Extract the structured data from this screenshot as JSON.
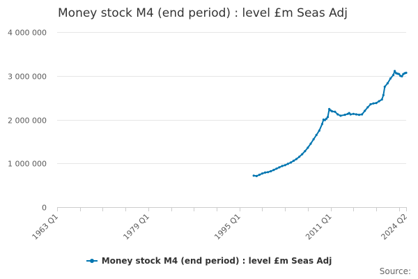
{
  "chart_data": {
    "type": "line",
    "title": "Money stock M4 (end period) : level £m Seas Adj",
    "xlabel": "",
    "ylabel": "",
    "x_range": [
      1963.0,
      2024.25
    ],
    "ylim": [
      0,
      4000000
    ],
    "y_ticks": [
      0,
      1000000,
      2000000,
      3000000,
      4000000
    ],
    "y_tick_labels": [
      "0",
      "1 000 000",
      "2 000 000",
      "3 000 000",
      "4 000 000"
    ],
    "x_ticks": [
      1963.0,
      1979.0,
      1995.0,
      2011.0,
      2024.25
    ],
    "x_tick_labels": [
      "1963 Q1",
      "1979 Q1",
      "1995 Q1",
      "2011 Q1",
      "2024 Q2"
    ],
    "grid": "horizontal",
    "legend_position": "bottom",
    "series": [
      {
        "name": "Money stock M4 (end period) : level £m Seas Adj",
        "color": "#0075b0",
        "points": [
          [
            1997.5,
            720000
          ],
          [
            1998.0,
            710000
          ],
          [
            1998.5,
            740000
          ],
          [
            1999.0,
            770000
          ],
          [
            1999.5,
            790000
          ],
          [
            2000.0,
            800000
          ],
          [
            2000.5,
            820000
          ],
          [
            2001.0,
            850000
          ],
          [
            2001.5,
            880000
          ],
          [
            2002.0,
            910000
          ],
          [
            2002.5,
            940000
          ],
          [
            2003.0,
            960000
          ],
          [
            2003.5,
            990000
          ],
          [
            2004.0,
            1020000
          ],
          [
            2004.5,
            1060000
          ],
          [
            2005.0,
            1100000
          ],
          [
            2005.5,
            1150000
          ],
          [
            2006.0,
            1210000
          ],
          [
            2006.5,
            1280000
          ],
          [
            2007.0,
            1360000
          ],
          [
            2007.5,
            1450000
          ],
          [
            2008.0,
            1550000
          ],
          [
            2008.5,
            1650000
          ],
          [
            2009.0,
            1750000
          ],
          [
            2009.5,
            1900000
          ],
          [
            2009.75,
            2000000
          ],
          [
            2010.0,
            1990000
          ],
          [
            2010.25,
            2020000
          ],
          [
            2010.5,
            2060000
          ],
          [
            2010.75,
            2240000
          ],
          [
            2011.0,
            2210000
          ],
          [
            2011.25,
            2190000
          ],
          [
            2011.75,
            2180000
          ],
          [
            2012.25,
            2120000
          ],
          [
            2012.75,
            2090000
          ],
          [
            2013.5,
            2110000
          ],
          [
            2014.0,
            2130000
          ],
          [
            2014.25,
            2150000
          ],
          [
            2014.5,
            2120000
          ],
          [
            2015.0,
            2130000
          ],
          [
            2015.5,
            2120000
          ],
          [
            2016.0,
            2110000
          ],
          [
            2016.5,
            2120000
          ],
          [
            2017.0,
            2200000
          ],
          [
            2017.5,
            2280000
          ],
          [
            2018.0,
            2350000
          ],
          [
            2018.5,
            2370000
          ],
          [
            2019.0,
            2380000
          ],
          [
            2019.5,
            2420000
          ],
          [
            2020.0,
            2460000
          ],
          [
            2020.25,
            2560000
          ],
          [
            2020.5,
            2750000
          ],
          [
            2021.0,
            2830000
          ],
          [
            2021.5,
            2940000
          ],
          [
            2022.0,
            3020000
          ],
          [
            2022.25,
            3110000
          ],
          [
            2022.5,
            3060000
          ],
          [
            2022.75,
            3050000
          ],
          [
            2023.0,
            3040000
          ],
          [
            2023.25,
            3000000
          ],
          [
            2023.5,
            2990000
          ],
          [
            2023.75,
            3040000
          ],
          [
            2024.0,
            3060000
          ],
          [
            2024.25,
            3070000
          ]
        ]
      }
    ]
  },
  "legend": {
    "label": "Money stock M4 (end period) : level £m Seas Adj"
  },
  "footer": {
    "source": "Source:"
  }
}
